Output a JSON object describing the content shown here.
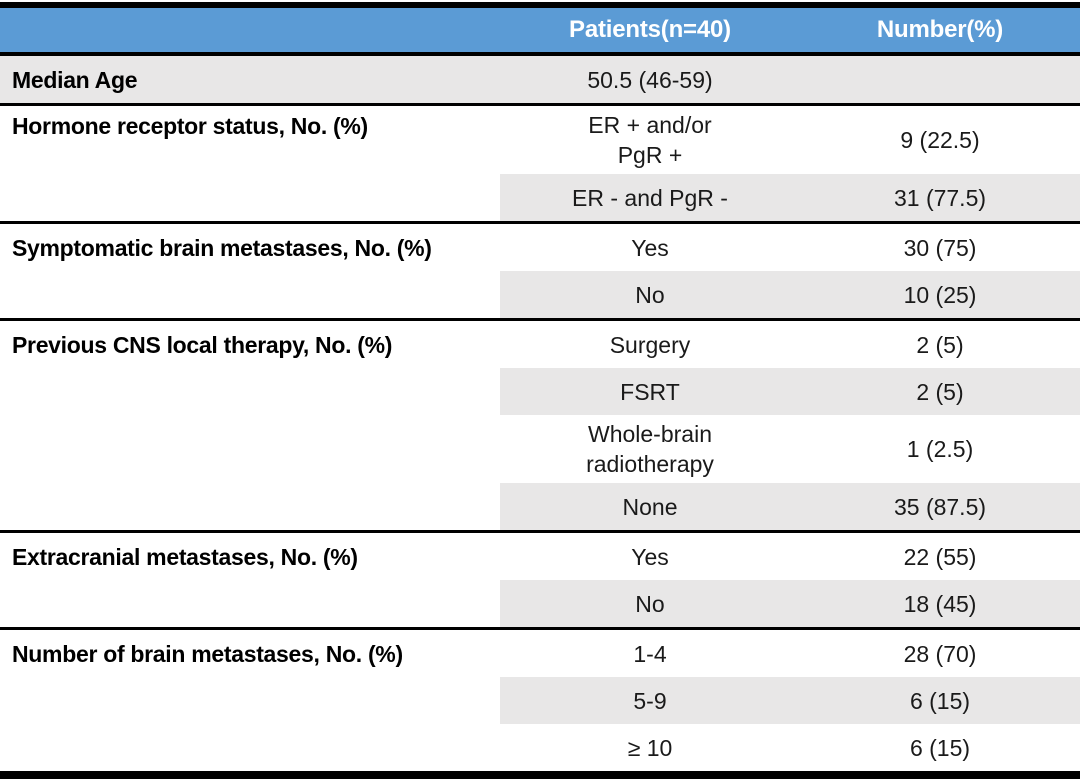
{
  "colors": {
    "header_bg": "#5B9BD5",
    "header_text": "#FFFFFF",
    "band_bg": "#E8E7E7",
    "rule": "#000000"
  },
  "header": {
    "col2": "Patients(n=40)",
    "col3": "Number(%)"
  },
  "groups": [
    {
      "label": "Median Age",
      "label_shaded": true,
      "rows": [
        {
          "value": "50.5 (46-59)",
          "number": "",
          "shaded": true
        }
      ]
    },
    {
      "label": "Hormone receptor status, No. (%)",
      "label_shaded": false,
      "rows": [
        {
          "value": "ER + and/or\nPgR +",
          "number": "9 (22.5)",
          "shaded": false
        },
        {
          "value": "ER - and PgR -",
          "number": "31 (77.5)",
          "shaded": true
        }
      ]
    },
    {
      "label": "Symptomatic brain metastases, No. (%)",
      "label_shaded": false,
      "rows": [
        {
          "value": "Yes",
          "number": "30 (75)",
          "shaded": false
        },
        {
          "value": "No",
          "number": "10 (25)",
          "shaded": true
        }
      ]
    },
    {
      "label": "Previous CNS local therapy, No. (%)",
      "label_shaded": false,
      "rows": [
        {
          "value": "Surgery",
          "number": "2 (5)",
          "shaded": false
        },
        {
          "value": "FSRT",
          "number": "2 (5)",
          "shaded": true
        },
        {
          "value": "Whole-brain\nradiotherapy",
          "number": "1 (2.5)",
          "shaded": false
        },
        {
          "value": "None",
          "number": "35 (87.5)",
          "shaded": true
        }
      ]
    },
    {
      "label": "Extracranial metastases, No. (%)",
      "label_shaded": false,
      "rows": [
        {
          "value": "Yes",
          "number": "22 (55)",
          "shaded": false
        },
        {
          "value": "No",
          "number": "18 (45)",
          "shaded": true
        }
      ]
    },
    {
      "label": "Number of brain metastases, No. (%)",
      "label_shaded": false,
      "rows": [
        {
          "value": "1-4",
          "number": "28 (70)",
          "shaded": false
        },
        {
          "value": "5-9",
          "number": "6 (15)",
          "shaded": true
        },
        {
          "value": "≥ 10",
          "number": "6 (15)",
          "shaded": false
        }
      ]
    }
  ]
}
